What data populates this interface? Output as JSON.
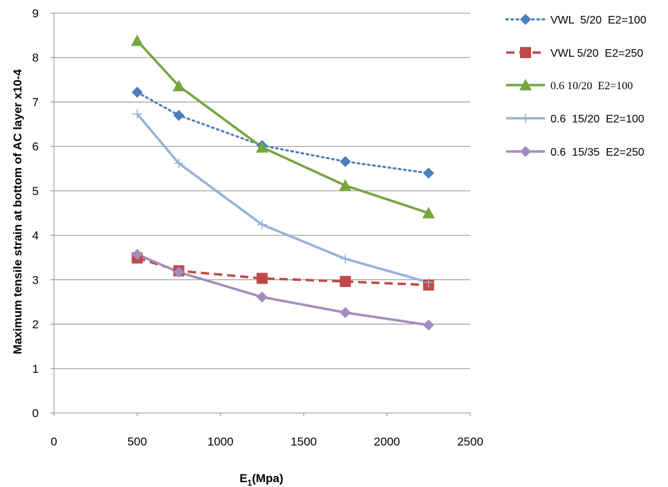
{
  "chart_data": {
    "type": "line",
    "xlabel_main": "E",
    "xlabel_sub": "1",
    "xlabel_rest": "(Mpa)",
    "ylabel": "Maximum tensile strain at bottom of AC layer x10-4",
    "xlim": [
      0,
      2500
    ],
    "ylim": [
      0,
      9
    ],
    "x_ticks": [
      0,
      500,
      1000,
      1500,
      2000,
      2500
    ],
    "y_ticks": [
      0,
      1,
      2,
      3,
      4,
      5,
      6,
      7,
      8,
      9
    ],
    "grid": "horizontal",
    "legend_position": "right",
    "series": [
      {
        "name": "VWL  5/20  E2=100",
        "color": "#4a7ebb",
        "line_style": "dotted",
        "marker": "diamond",
        "x": [
          500,
          750,
          1250,
          1750,
          2250
        ],
        "y": [
          7.22,
          6.7,
          6.02,
          5.66,
          5.4
        ]
      },
      {
        "name": "VWL 5/20  E2=250",
        "color": "#be4b48",
        "line_style": "dashed",
        "marker": "square",
        "x": [
          500,
          750,
          1250,
          1750,
          2250
        ],
        "y": [
          3.49,
          3.2,
          3.03,
          2.96,
          2.88
        ]
      },
      {
        "name": "0.6 10/20  E2=100",
        "color": "#77a540",
        "line_style": "solid",
        "marker": "triangle",
        "x": [
          500,
          750,
          1250,
          1750,
          2250
        ],
        "y": [
          8.38,
          7.36,
          5.98,
          5.12,
          4.5
        ]
      },
      {
        "name": "0.6  15/20  E2=100",
        "color": "#94b3d9",
        "line_style": "solid",
        "marker": "plus",
        "x": [
          500,
          750,
          1250,
          1750,
          2250
        ],
        "y": [
          6.73,
          5.62,
          4.24,
          3.47,
          2.94
        ]
      },
      {
        "name": "0.6  15/35  E2=250",
        "color": "#a28cbd",
        "line_style": "solid",
        "marker": "diamond",
        "x": [
          500,
          750,
          1250,
          1750,
          2250
        ],
        "y": [
          3.57,
          3.17,
          2.61,
          2.26,
          1.98
        ]
      }
    ]
  }
}
